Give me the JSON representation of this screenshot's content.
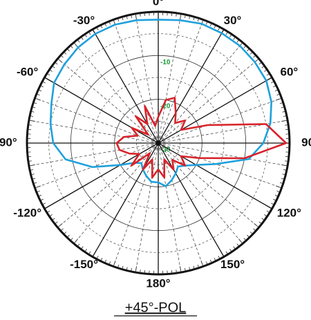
{
  "chart_data": {
    "type": "polar",
    "title": "+45°-POL",
    "x": [
      -180,
      -170,
      -160,
      -150,
      -140,
      -130,
      -120,
      -110,
      -100,
      -90,
      -80,
      -70,
      -60,
      -50,
      -40,
      -30,
      -20,
      -10,
      0,
      10,
      20,
      30,
      40,
      50,
      60,
      70,
      80,
      90,
      100,
      110,
      120,
      130,
      140,
      150,
      160,
      170,
      180
    ],
    "series": [
      {
        "color": "#1ea0dc",
        "values": [
          -21,
          -21,
          -22,
          -23,
          -24,
          -23,
          -20,
          -14,
          -8.5,
          -6,
          -5,
          -4,
          -2.5,
          -2,
          -1.5,
          -1.2,
          -1.2,
          -1.5,
          -1.8,
          -1.5,
          -1,
          -1,
          -1,
          -1.2,
          -1.5,
          -2.5,
          -4,
          -6,
          -9,
          -16,
          -20,
          -22,
          -23,
          -22,
          -21,
          -20,
          -21
        ]
      },
      {
        "color": "#d8232a",
        "values": [
          -24,
          -22,
          -26,
          -23,
          -27,
          -22,
          -25,
          -23,
          -21,
          -20.5,
          -22,
          -25,
          -23,
          -27,
          -22,
          -25,
          -21,
          -26,
          -24,
          -20,
          -19,
          -22,
          -24,
          -22,
          -24,
          -18,
          -5,
          -0.8,
          -10,
          -20,
          -24,
          -22,
          -25,
          -23,
          -26,
          -22,
          -24
        ]
      }
    ],
    "xticks": [
      {
        "value": 0,
        "label": "0°"
      },
      {
        "value": 30,
        "label": "30°"
      },
      {
        "value": 60,
        "label": "60°"
      },
      {
        "value": 90,
        "label": "90°"
      },
      {
        "value": 120,
        "label": "120°"
      },
      {
        "value": 150,
        "label": "150°"
      },
      {
        "value": 180,
        "label": "180°"
      },
      {
        "value": -150,
        "label": "-150°"
      },
      {
        "value": -120,
        "label": "-120°"
      },
      {
        "value": -90,
        "label": "-90°"
      },
      {
        "value": -60,
        "label": "-60°"
      },
      {
        "value": -30,
        "label": "-30°"
      }
    ],
    "rlim": [
      -30,
      0
    ],
    "rticks": [
      -30,
      -20,
      -10
    ],
    "rminor_ticks": [
      -25,
      -15,
      -5
    ]
  }
}
